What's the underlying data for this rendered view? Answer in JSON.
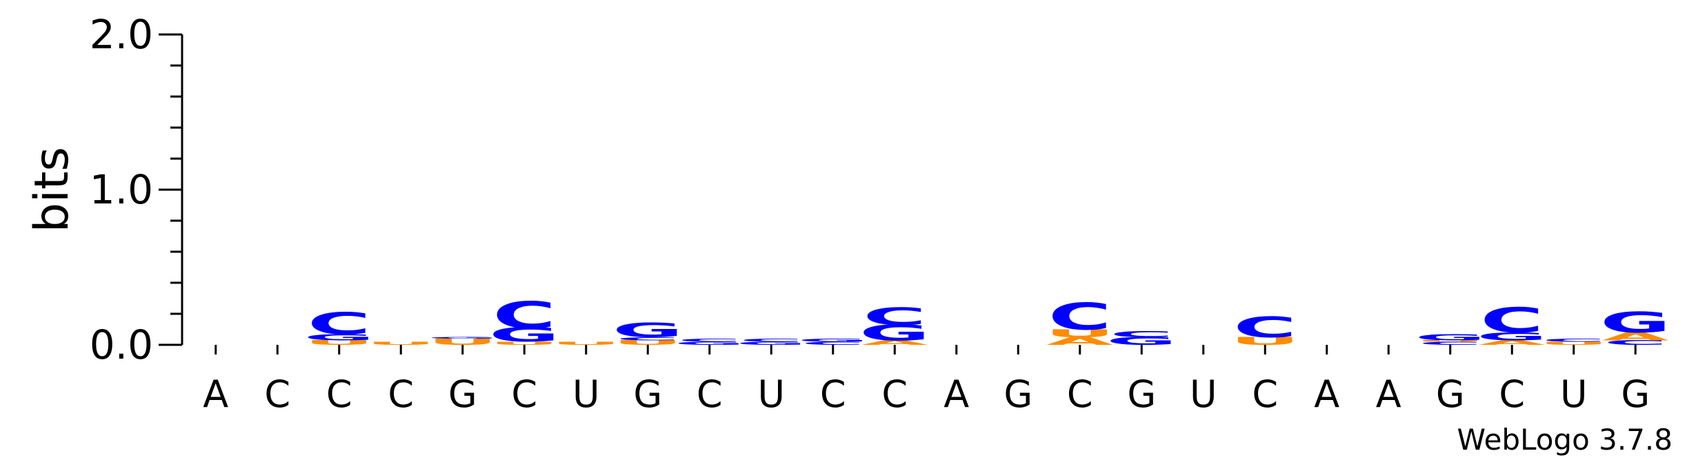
{
  "chart_data": {
    "type": "sequence-logo",
    "ylabel": "bits",
    "ylim": [
      0,
      2.0
    ],
    "yticks": [
      "0.0",
      "1.0",
      "2.0"
    ],
    "positions": [
      "A",
      "C",
      "C",
      "C",
      "G",
      "C",
      "U",
      "G",
      "C",
      "U",
      "C",
      "C",
      "A",
      "G",
      "C",
      "G",
      "U",
      "C",
      "A",
      "A",
      "G",
      "C",
      "U",
      "G"
    ],
    "stacks": [
      [],
      [],
      [
        {
          "letter": "U",
          "bits": 0.03
        },
        {
          "letter": "G",
          "bits": 0.04
        },
        {
          "letter": "C",
          "bits": 0.14
        }
      ],
      [
        {
          "letter": "U",
          "bits": 0.02
        }
      ],
      [
        {
          "letter": "U",
          "bits": 0.04
        },
        {
          "letter": "G",
          "bits": 0.01
        }
      ],
      [
        {
          "letter": "U",
          "bits": 0.02
        },
        {
          "letter": "G",
          "bits": 0.09
        },
        {
          "letter": "C",
          "bits": 0.17
        }
      ],
      [
        {
          "letter": "U",
          "bits": 0.02
        }
      ],
      [
        {
          "letter": "U",
          "bits": 0.03
        },
        {
          "letter": "C",
          "bits": 0.02
        },
        {
          "letter": "G",
          "bits": 0.09
        }
      ],
      [
        {
          "letter": "G",
          "bits": 0.02
        },
        {
          "letter": "C",
          "bits": 0.02
        }
      ],
      [
        {
          "letter": "G",
          "bits": 0.02
        },
        {
          "letter": "C",
          "bits": 0.02
        }
      ],
      [
        {
          "letter": "C",
          "bits": 0.02
        },
        {
          "letter": "G",
          "bits": 0.02
        }
      ],
      [
        {
          "letter": "A",
          "bits": 0.03
        },
        {
          "letter": "G",
          "bits": 0.1
        },
        {
          "letter": "C",
          "bits": 0.11
        }
      ],
      [],
      [],
      [
        {
          "letter": "A",
          "bits": 0.05
        },
        {
          "letter": "U",
          "bits": 0.05
        },
        {
          "letter": "C",
          "bits": 0.17
        }
      ],
      [
        {
          "letter": "G",
          "bits": 0.05
        },
        {
          "letter": "C",
          "bits": 0.04
        }
      ],
      [],
      [
        {
          "letter": "U",
          "bits": 0.05
        },
        {
          "letter": "C",
          "bits": 0.13
        }
      ],
      [],
      [],
      [
        {
          "letter": "C",
          "bits": 0.02
        },
        {
          "letter": "U",
          "bits": 0.01
        },
        {
          "letter": "G",
          "bits": 0.04
        }
      ],
      [
        {
          "letter": "A",
          "bits": 0.03
        },
        {
          "letter": "G",
          "bits": 0.05
        },
        {
          "letter": "C",
          "bits": 0.16
        }
      ],
      [
        {
          "letter": "U",
          "bits": 0.02
        },
        {
          "letter": "C",
          "bits": 0.02
        }
      ],
      [
        {
          "letter": "C",
          "bits": 0.03
        },
        {
          "letter": "A",
          "bits": 0.05
        },
        {
          "letter": "G",
          "bits": 0.13
        }
      ]
    ],
    "colors": {
      "A": "#ff8c00",
      "U": "#ff8c00",
      "C": "#0000ff",
      "G": "#0000ff"
    }
  },
  "footer": "WebLogo 3.7.8"
}
